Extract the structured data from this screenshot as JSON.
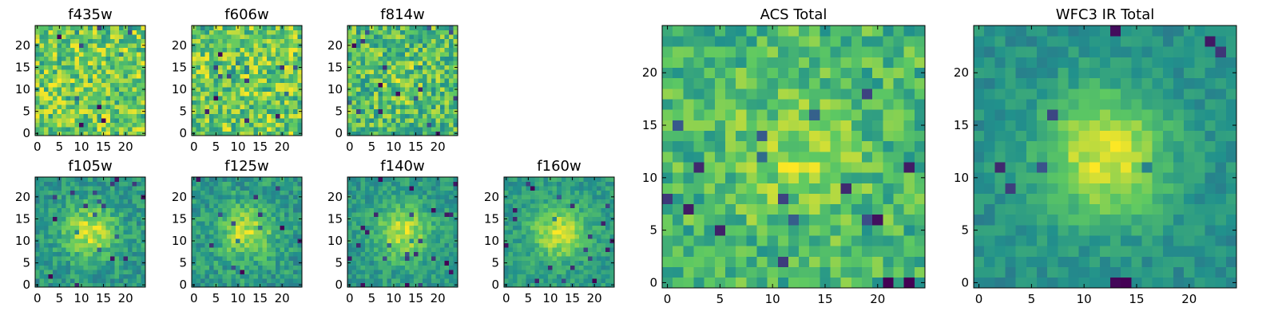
{
  "chart_data": [
    {
      "type": "heatmap",
      "title": "f435w",
      "x_ticks": [
        "0",
        "5",
        "10",
        "15",
        "20"
      ],
      "y_ticks": [
        "0",
        "5",
        "10",
        "15",
        "20"
      ],
      "xlim": [
        -0.5,
        24.5
      ],
      "ylim": [
        -0.5,
        24.5
      ],
      "size": 25,
      "peak": 0.0,
      "noise": 0.55,
      "seed": 11
    },
    {
      "type": "heatmap",
      "title": "f606w",
      "x_ticks": [
        "0",
        "5",
        "10",
        "15",
        "20"
      ],
      "y_ticks": [
        "0",
        "5",
        "10",
        "15",
        "20"
      ],
      "xlim": [
        -0.5,
        24.5
      ],
      "ylim": [
        -0.5,
        24.5
      ],
      "size": 25,
      "peak": 0.0,
      "noise": 0.55,
      "seed": 23
    },
    {
      "type": "heatmap",
      "title": "f814w",
      "x_ticks": [
        "0",
        "5",
        "10",
        "15",
        "20"
      ],
      "y_ticks": [
        "0",
        "5",
        "10",
        "15",
        "20"
      ],
      "xlim": [
        -0.5,
        24.5
      ],
      "ylim": [
        -0.5,
        24.5
      ],
      "size": 25,
      "peak": 0.1,
      "noise": 0.55,
      "seed": 37
    },
    {
      "type": "heatmap",
      "title": "f105w",
      "x_ticks": [
        "0",
        "5",
        "10",
        "15",
        "20"
      ],
      "y_ticks": [
        "0",
        "5",
        "10",
        "15",
        "20"
      ],
      "xlim": [
        -0.5,
        24.5
      ],
      "ylim": [
        -0.5,
        24.5
      ],
      "size": 25,
      "peak": 0.5,
      "noise": 0.35,
      "seed": 41
    },
    {
      "type": "heatmap",
      "title": "f125w",
      "x_ticks": [
        "0",
        "5",
        "10",
        "15",
        "20"
      ],
      "y_ticks": [
        "0",
        "5",
        "10",
        "15",
        "20"
      ],
      "xlim": [
        -0.5,
        24.5
      ],
      "ylim": [
        -0.5,
        24.5
      ],
      "size": 25,
      "peak": 0.45,
      "noise": 0.35,
      "seed": 53
    },
    {
      "type": "heatmap",
      "title": "f140w",
      "x_ticks": [
        "0",
        "5",
        "10",
        "15",
        "20"
      ],
      "y_ticks": [
        "0",
        "5",
        "10",
        "15",
        "20"
      ],
      "xlim": [
        -0.5,
        24.5
      ],
      "ylim": [
        -0.5,
        24.5
      ],
      "size": 25,
      "peak": 0.5,
      "noise": 0.32,
      "seed": 67
    },
    {
      "type": "heatmap",
      "title": "f160w",
      "x_ticks": [
        "0",
        "5",
        "10",
        "15",
        "20"
      ],
      "y_ticks": [
        "0",
        "5",
        "10",
        "15",
        "20"
      ],
      "xlim": [
        -0.5,
        24.5
      ],
      "ylim": [
        -0.5,
        24.5
      ],
      "size": 25,
      "peak": 0.5,
      "noise": 0.3,
      "seed": 71
    },
    {
      "type": "heatmap",
      "title": "ACS Total",
      "x_ticks": [
        "0",
        "5",
        "10",
        "15",
        "20"
      ],
      "y_ticks": [
        "0",
        "5",
        "10",
        "15",
        "20"
      ],
      "xlim": [
        -0.5,
        24.5
      ],
      "ylim": [
        -0.5,
        24.5
      ],
      "size": 25,
      "peak": 0.2,
      "noise": 0.42,
      "seed": 83
    },
    {
      "type": "heatmap",
      "title": "WFC3 IR Total",
      "x_ticks": [
        "0",
        "5",
        "10",
        "15",
        "20"
      ],
      "y_ticks": [
        "0",
        "5",
        "10",
        "15",
        "20"
      ],
      "xlim": [
        -0.5,
        24.5
      ],
      "ylim": [
        -0.5,
        24.5
      ],
      "size": 25,
      "peak": 0.65,
      "noise": 0.25,
      "seed": 97
    }
  ],
  "colormap": [
    "#440154",
    "#3b528b",
    "#21918c",
    "#5ec962",
    "#fde725"
  ]
}
